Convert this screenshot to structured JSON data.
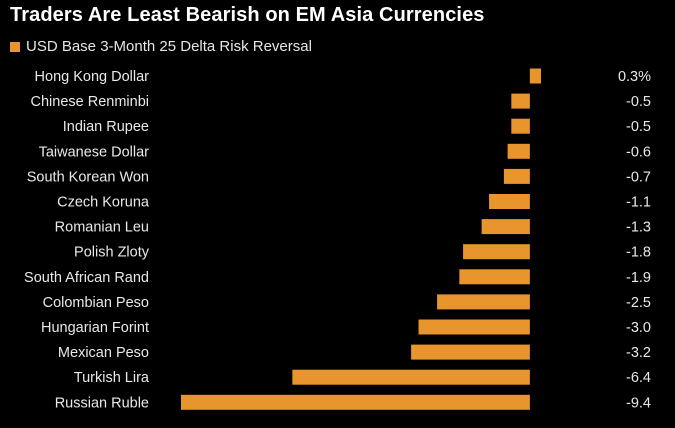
{
  "chart_data": {
    "type": "bar",
    "orientation": "horizontal",
    "title": "Traders Are Least Bearish on EM Asia Currencies",
    "legend": "USD Base 3-Month 25 Delta Risk Reversal",
    "categories": [
      "Hong Kong Dollar",
      "Chinese Renminbi",
      "Indian Rupee",
      "Taiwanese Dollar",
      "South Korean Won",
      "Czech Koruna",
      "Romanian Leu",
      "Polish Zloty",
      "South African Rand",
      "Colombian Peso",
      "Hungarian Forint",
      "Mexican Peso",
      "Turkish Lira",
      "Russian Ruble"
    ],
    "values": [
      0.3,
      -0.5,
      -0.5,
      -0.6,
      -0.7,
      -1.1,
      -1.3,
      -1.8,
      -1.9,
      -2.5,
      -3.0,
      -3.2,
      -6.4,
      -9.4
    ],
    "value_labels": [
      "0.3%",
      "-0.5",
      "-0.5",
      "-0.6",
      "-0.7",
      "-1.1",
      "-1.3",
      "-1.8",
      "-1.9",
      "-2.5",
      "-3.0",
      "-3.2",
      "-6.4",
      "-9.4"
    ],
    "xlim": [
      -9.4,
      0.3
    ],
    "colors": {
      "bar": "#e8952d",
      "background": "#000000",
      "text": "#e8e8e8"
    }
  }
}
